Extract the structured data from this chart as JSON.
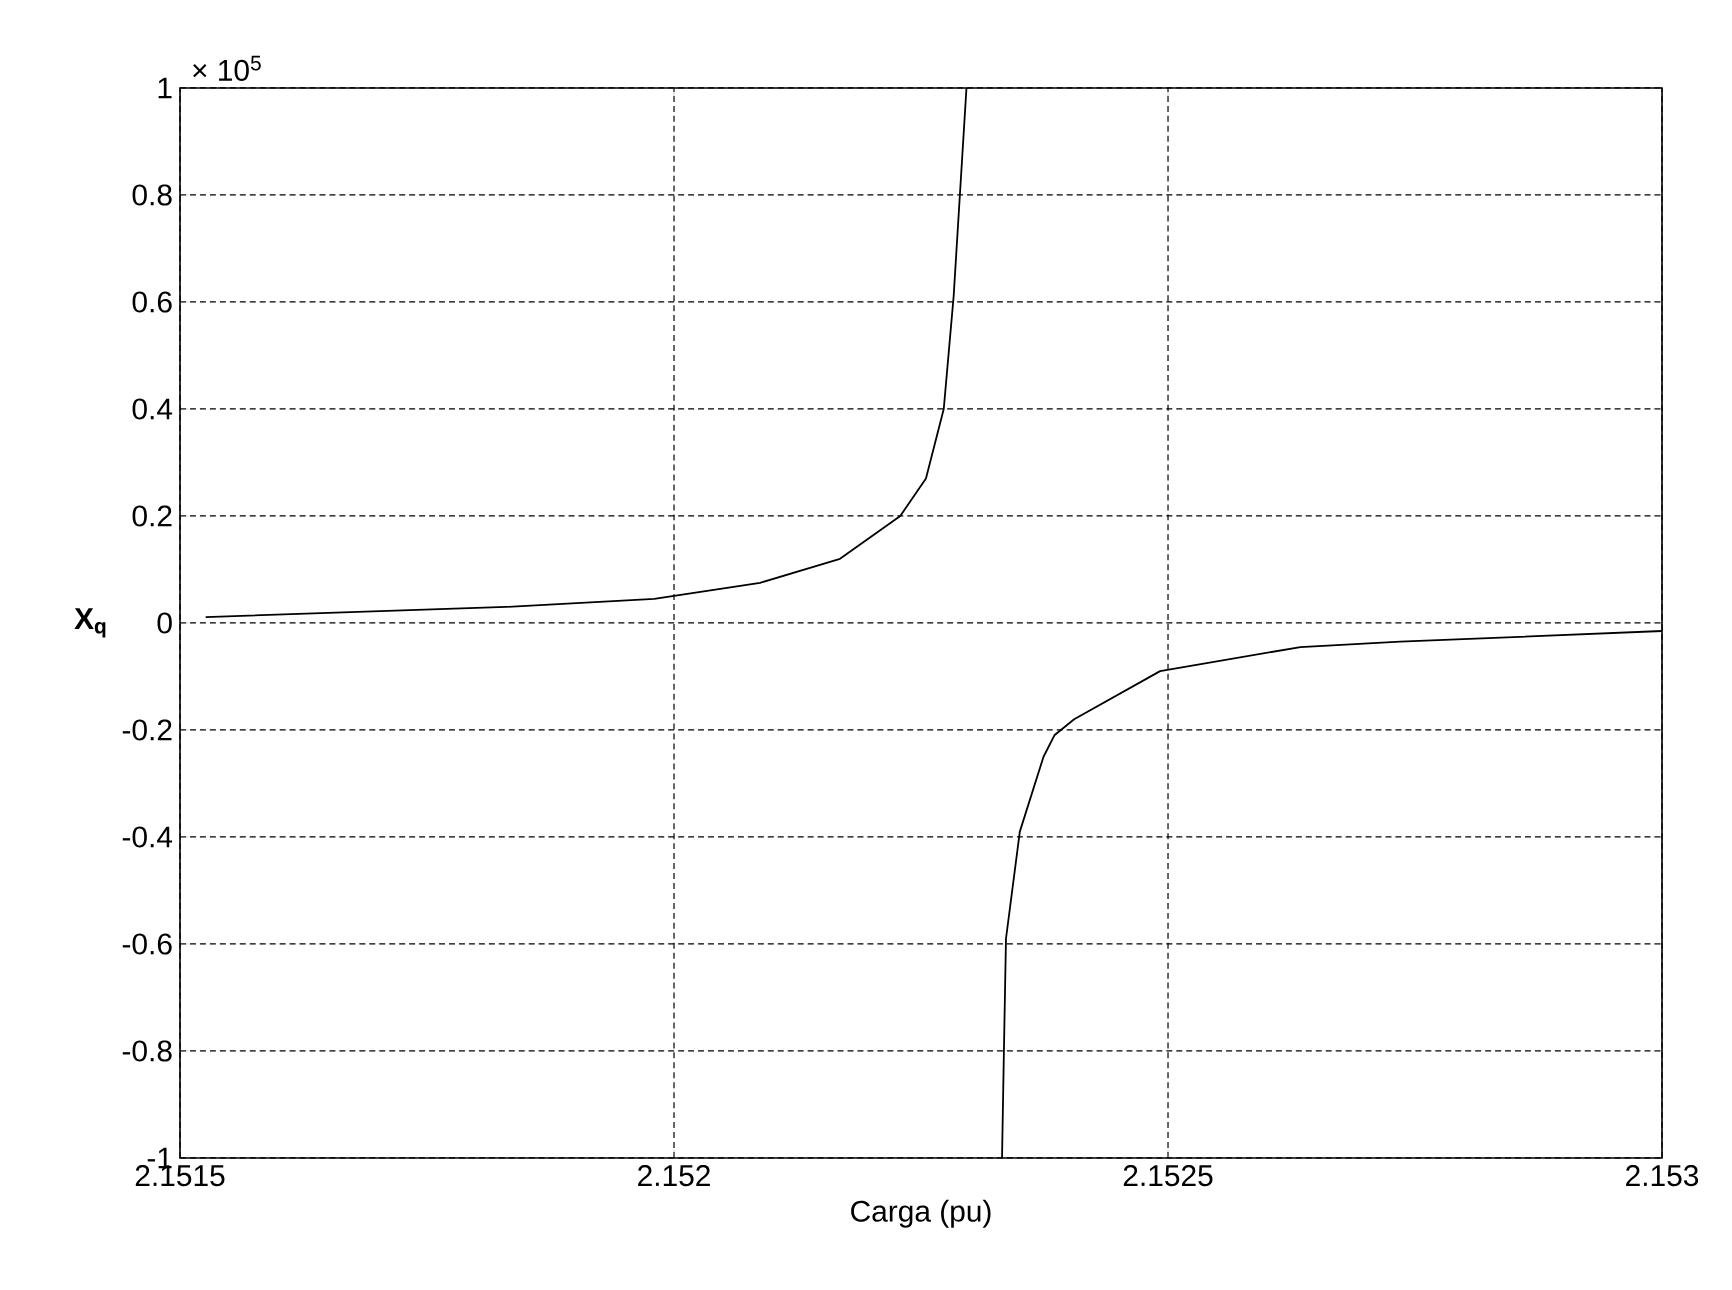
{
  "chart_data": {
    "type": "line",
    "xlabel": "Carga (pu)",
    "ylabel": "X$_{q}$",
    "annotations": [
      "× 10$^{5}$"
    ],
    "x": [
      2.151526,
      2.15183,
      2.15198,
      2.152087,
      2.152168,
      2.152229,
      2.152255,
      2.152273,
      2.152283,
      2.152289,
      2.152296,
      2.152314,
      2.152332,
      2.152334,
      2.152336,
      2.15235,
      2.152374,
      2.152385,
      2.152405,
      2.152492,
      2.152634,
      2.152735,
      2.153
    ],
    "series": [
      {
        "color": "#000000",
        "values": [
          0.011,
          0.03,
          0.045,
          0.075,
          0.12,
          0.2,
          0.27,
          0.4,
          0.61,
          0.79,
          1.0,
          null,
          -1.0,
          -0.79,
          -0.59,
          -0.39,
          -0.25,
          -0.21,
          -0.18,
          -0.09,
          -0.045,
          -0.035,
          -0.015
        ]
      }
    ],
    "xlim": [
      2.1515,
      2.153
    ],
    "xticks": [
      2.1515,
      2.152,
      2.1525,
      2.153
    ],
    "ylim": [
      -1,
      1
    ],
    "yticks": [
      -1,
      -0.8,
      -0.6,
      -0.4,
      -0.2,
      0,
      0.2,
      0.4,
      0.6,
      0.8,
      1
    ],
    "grid": true,
    "marker": "none",
    "line_style": "solid"
  }
}
